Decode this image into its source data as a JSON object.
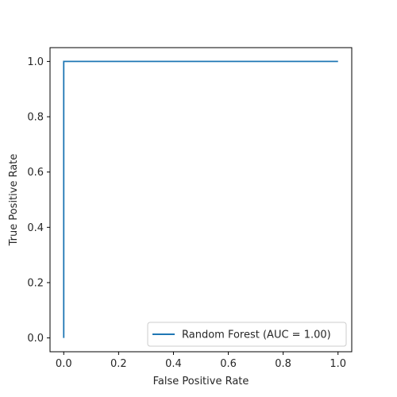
{
  "chart_data": {
    "type": "line",
    "title": "",
    "xlabel": "False Positive Rate",
    "ylabel": "True Positive Rate",
    "xlim": [
      -0.05,
      1.05
    ],
    "ylim": [
      -0.05,
      1.05
    ],
    "xticks": [
      0.0,
      0.2,
      0.4,
      0.6,
      0.8,
      1.0
    ],
    "yticks": [
      0.0,
      0.2,
      0.4,
      0.6,
      0.8,
      1.0
    ],
    "xtick_labels": [
      "0.0",
      "0.2",
      "0.4",
      "0.6",
      "0.8",
      "1.0"
    ],
    "ytick_labels": [
      "0.0",
      "0.2",
      "0.4",
      "0.6",
      "0.8",
      "1.0"
    ],
    "grid": false,
    "legend_position": "lower-right",
    "series": [
      {
        "name": "Random Forest (AUC = 1.00)",
        "color": "#1f77b4",
        "x": [
          0.0,
          0.0,
          1.0
        ],
        "y": [
          0.0,
          1.0,
          1.0
        ]
      }
    ]
  }
}
